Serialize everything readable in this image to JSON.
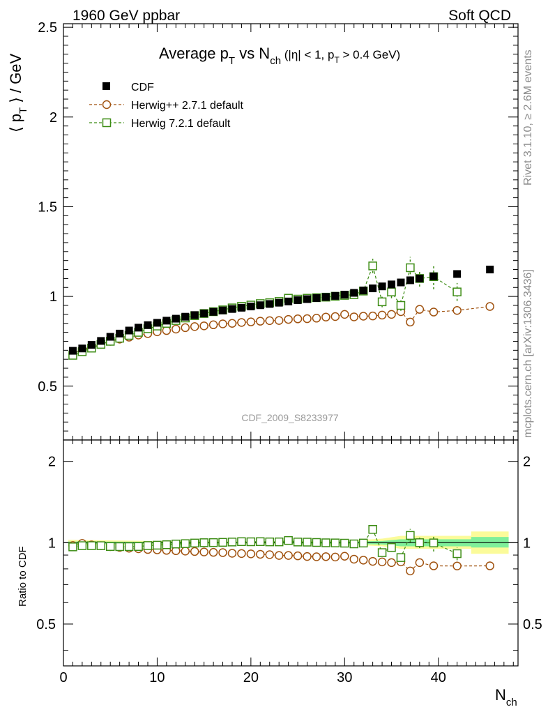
{
  "header": {
    "left": "1960 GeV ppbar",
    "right": "Soft QCD"
  },
  "side": {
    "rivet": "Rivet 3.1.10, ≥ 2.6M events",
    "mcplots": "mcplots.cern.ch [arXiv:1306.3436]"
  },
  "watermark": "CDF_2009_S8233977",
  "title": {
    "main_a": "Average p",
    "main_a_sub": "T",
    "main_b": " vs N",
    "main_b_sub": "ch",
    "cuts_a": " (|η| < 1, p",
    "cuts_sub": "T",
    "cuts_b": " > 0.4 GeV)"
  },
  "ylabel_top": "⟨ p",
  "ylabel_top_sub": "T",
  "ylabel_top_end": " ⟩ / GeV",
  "ylabel_bottom": "Ratio to CDF",
  "xlabel_main": "N",
  "xlabel_sub": "ch",
  "legend": [
    {
      "label": "CDF",
      "marker": "filled-square",
      "color": "#000000"
    },
    {
      "label": "Herwig++ 2.7.1 default",
      "marker": "open-circle",
      "color": "#a0520f"
    },
    {
      "label": "Herwig 7.2.1 default",
      "marker": "open-square",
      "color": "#3c8c14"
    }
  ],
  "colors": {
    "cdf": "#000000",
    "herwigpp": "#a0520f",
    "herwig7": "#3c8c14",
    "band_inner": "#7fef9a",
    "band_outer": "#fbfb9a"
  },
  "chart_data": [
    {
      "type": "scatter",
      "xlim": [
        0,
        48.5
      ],
      "ylim": [
        0.2,
        2.52
      ],
      "y_ticks": [
        "0.5",
        "1",
        "1.5",
        "2",
        "2.5"
      ],
      "x_ticks": [
        "0",
        "10",
        "20",
        "30",
        "40"
      ],
      "series": [
        {
          "name": "CDF",
          "x": [
            1,
            2,
            3,
            4,
            5,
            6,
            7,
            8,
            9,
            10,
            11,
            12,
            13,
            14,
            15,
            16,
            17,
            18,
            19,
            20,
            21,
            22,
            23,
            24,
            25,
            26,
            27,
            28,
            29,
            30,
            31,
            32,
            33,
            34,
            35,
            36,
            37,
            38,
            39.5,
            42,
            45.5
          ],
          "values": [
            0.697,
            0.71,
            0.73,
            0.752,
            0.775,
            0.793,
            0.81,
            0.826,
            0.84,
            0.853,
            0.865,
            0.876,
            0.887,
            0.896,
            0.905,
            0.914,
            0.922,
            0.93,
            0.937,
            0.944,
            0.951,
            0.958,
            0.965,
            0.972,
            0.979,
            0.985,
            0.991,
            0.997,
            1.003,
            1.01,
            1.02,
            1.033,
            1.045,
            1.056,
            1.067,
            1.078,
            1.09,
            1.1,
            1.112,
            1.125,
            1.15
          ]
        },
        {
          "name": "Herwig++ 2.7.1 default",
          "x": [
            1,
            2,
            3,
            4,
            5,
            6,
            7,
            8,
            9,
            10,
            11,
            12,
            13,
            14,
            15,
            16,
            17,
            18,
            19,
            20,
            21,
            22,
            23,
            24,
            25,
            26,
            27,
            28,
            29,
            30,
            31,
            32,
            33,
            34,
            35,
            36,
            37,
            38,
            39.5,
            42,
            45.5
          ],
          "values": [
            0.68,
            0.706,
            0.716,
            0.733,
            0.75,
            0.762,
            0.773,
            0.785,
            0.793,
            0.803,
            0.81,
            0.818,
            0.826,
            0.832,
            0.836,
            0.842,
            0.847,
            0.85,
            0.855,
            0.858,
            0.862,
            0.865,
            0.866,
            0.872,
            0.875,
            0.876,
            0.879,
            0.885,
            0.888,
            0.9,
            0.886,
            0.89,
            0.891,
            0.896,
            0.9,
            0.915,
            0.857,
            0.928,
            0.913,
            0.922,
            0.944
          ],
          "errors": [
            0,
            0,
            0,
            0,
            0,
            0,
            0,
            0,
            0,
            0,
            0,
            0,
            0,
            0,
            0,
            0,
            0,
            0,
            0,
            0,
            0,
            0,
            0,
            0,
            0,
            0,
            0,
            0,
            0,
            0,
            0,
            0,
            0,
            0,
            0,
            0.012,
            0.012,
            0,
            0,
            0,
            0
          ]
        },
        {
          "name": "Herwig 7.2.1 default",
          "x": [
            1,
            2,
            3,
            4,
            5,
            6,
            7,
            8,
            9,
            10,
            11,
            12,
            13,
            14,
            15,
            16,
            17,
            18,
            19,
            20,
            21,
            22,
            23,
            24,
            25,
            26,
            27,
            28,
            29,
            30,
            31,
            32,
            33,
            34,
            35,
            36,
            37,
            38,
            39.5,
            42
          ],
          "values": [
            0.672,
            0.692,
            0.712,
            0.733,
            0.75,
            0.767,
            0.783,
            0.8,
            0.82,
            0.835,
            0.85,
            0.866,
            0.88,
            0.893,
            0.905,
            0.915,
            0.925,
            0.936,
            0.945,
            0.952,
            0.96,
            0.965,
            0.972,
            0.99,
            0.985,
            0.99,
            0.993,
            0.996,
            1.001,
            1.006,
            1.01,
            1.03,
            1.17,
            0.97,
            1.025,
            0.95,
            1.16,
            1.1,
            1.11,
            1.025
          ],
          "errors": [
            0,
            0,
            0,
            0,
            0,
            0,
            0,
            0,
            0,
            0,
            0,
            0,
            0,
            0,
            0,
            0,
            0,
            0,
            0,
            0,
            0,
            0,
            0,
            0,
            0,
            0,
            0,
            0,
            0,
            0,
            0,
            0.015,
            0.04,
            0.03,
            0.035,
            0.03,
            0.06,
            0.045,
            0.07,
            0.05
          ]
        }
      ]
    },
    {
      "type": "scatter",
      "xlim": [
        0,
        48.5
      ],
      "ylim": [
        0.35,
        2.4
      ],
      "y_ticks": [
        "0.5",
        "1",
        "2"
      ],
      "x_ticks": [
        "0",
        "10",
        "20",
        "30",
        "40"
      ],
      "band_inner": [
        [
          0.5,
          0.99,
          1.01
        ],
        [
          9.5,
          0.992,
          1.008
        ],
        [
          20,
          0.993,
          1.007
        ],
        [
          30,
          0.99,
          1.01
        ],
        [
          34,
          0.985,
          1.015
        ],
        [
          36,
          0.97,
          1.03
        ],
        [
          43.5,
          0.97,
          1.03
        ],
        [
          43.5,
          0.96,
          1.05
        ],
        [
          47.5,
          0.96,
          1.05
        ]
      ],
      "band_outer": [
        [
          0.5,
          0.98,
          1.025
        ],
        [
          9.5,
          0.985,
          1.015
        ],
        [
          20,
          0.988,
          1.012
        ],
        [
          30,
          0.985,
          1.015
        ],
        [
          34,
          0.97,
          1.035
        ],
        [
          36,
          0.95,
          1.06
        ],
        [
          43.5,
          0.95,
          1.06
        ],
        [
          43.5,
          0.91,
          1.1
        ],
        [
          47.5,
          0.91,
          1.1
        ]
      ],
      "series": [
        {
          "name": "Herwig++ 2.7.1 default",
          "x": [
            1,
            2,
            3,
            4,
            5,
            6,
            7,
            8,
            9,
            10,
            11,
            12,
            13,
            14,
            15,
            16,
            17,
            18,
            19,
            20,
            21,
            22,
            23,
            24,
            25,
            26,
            27,
            28,
            29,
            30,
            31,
            32,
            33,
            34,
            35,
            36,
            37,
            38,
            39.5,
            42,
            45.5
          ],
          "values": [
            0.976,
            0.994,
            0.981,
            0.975,
            0.967,
            0.961,
            0.954,
            0.95,
            0.944,
            0.941,
            0.937,
            0.934,
            0.931,
            0.928,
            0.924,
            0.921,
            0.919,
            0.914,
            0.912,
            0.909,
            0.906,
            0.903,
            0.897,
            0.897,
            0.894,
            0.889,
            0.887,
            0.888,
            0.885,
            0.891,
            0.869,
            0.862,
            0.853,
            0.849,
            0.844,
            0.849,
            0.786,
            0.844,
            0.821,
            0.82,
            0.821
          ],
          "errors": [
            0,
            0,
            0,
            0,
            0,
            0,
            0,
            0,
            0,
            0,
            0,
            0,
            0,
            0,
            0,
            0,
            0,
            0,
            0,
            0,
            0,
            0,
            0,
            0,
            0,
            0,
            0,
            0,
            0,
            0,
            0,
            0,
            0,
            0,
            0,
            0.012,
            0.012,
            0,
            0,
            0,
            0
          ]
        },
        {
          "name": "Herwig 7.2.1 default",
          "x": [
            1,
            2,
            3,
            4,
            5,
            6,
            7,
            8,
            9,
            10,
            11,
            12,
            13,
            14,
            15,
            16,
            17,
            18,
            19,
            20,
            21,
            22,
            23,
            24,
            25,
            26,
            27,
            28,
            29,
            30,
            31,
            32,
            33,
            34,
            35,
            36,
            37,
            38,
            39.5,
            42
          ],
          "values": [
            0.965,
            0.975,
            0.975,
            0.975,
            0.968,
            0.967,
            0.967,
            0.968,
            0.976,
            0.979,
            0.983,
            0.989,
            0.992,
            0.997,
            1.0,
            1.001,
            1.003,
            1.006,
            1.009,
            1.008,
            1.009,
            1.007,
            1.007,
            1.019,
            1.006,
            1.005,
            1.002,
            0.999,
            0.998,
            0.996,
            0.99,
            0.997,
            1.12,
            0.919,
            0.96,
            0.881,
            1.064,
            1.0,
            0.998,
            0.911
          ],
          "errors": [
            0,
            0,
            0,
            0,
            0,
            0,
            0,
            0,
            0,
            0,
            0,
            0,
            0,
            0,
            0,
            0,
            0,
            0,
            0,
            0,
            0,
            0,
            0,
            0,
            0,
            0,
            0,
            0,
            0,
            0,
            0,
            0.015,
            0.04,
            0.03,
            0.035,
            0.03,
            0.06,
            0.045,
            0.07,
            0.05
          ]
        }
      ]
    }
  ]
}
